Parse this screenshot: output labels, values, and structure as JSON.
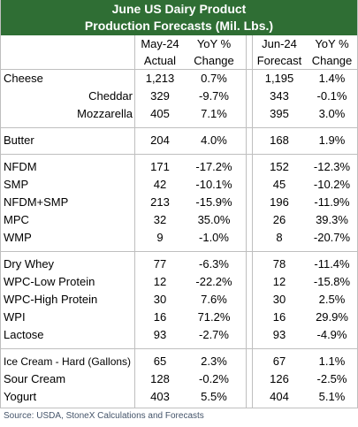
{
  "header": {
    "title": [
      "June US Dairy Product",
      "Production Forecasts (Mil. Lbs.)"
    ]
  },
  "columns": [
    [
      "May-24",
      "Actual"
    ],
    [
      "YoY %",
      "Change"
    ],
    [
      "Jun-24",
      "Forecast"
    ],
    [
      "YoY %",
      "Change"
    ]
  ],
  "groups": [
    [
      {
        "cells": [
          "Cheese",
          "1,213",
          "0.7%",
          "1,195",
          "1.4%"
        ]
      },
      {
        "cells": [
          "Cheddar",
          "329",
          "-9.7%",
          "343",
          "-0.1%"
        ],
        "indent": true
      },
      {
        "cells": [
          "Mozzarella",
          "405",
          "7.1%",
          "395",
          "3.0%"
        ],
        "indent": true
      }
    ],
    [
      {
        "cells": [
          "Butter",
          "204",
          "4.0%",
          "168",
          "1.9%"
        ]
      }
    ],
    [
      {
        "cells": [
          "NFDM",
          "171",
          "-17.2%",
          "152",
          "-12.3%"
        ]
      },
      {
        "cells": [
          "SMP",
          "42",
          "-10.1%",
          "45",
          "-10.2%"
        ]
      },
      {
        "cells": [
          "NFDM+SMP",
          "213",
          "-15.9%",
          "196",
          "-11.9%"
        ]
      },
      {
        "cells": [
          "MPC",
          "32",
          "35.0%",
          "26",
          "39.3%"
        ]
      },
      {
        "cells": [
          "WMP",
          "9",
          "-1.0%",
          "8",
          "-20.7%"
        ]
      }
    ],
    [
      {
        "cells": [
          "Dry Whey",
          "77",
          "-6.3%",
          "78",
          "-11.4%"
        ]
      },
      {
        "cells": [
          "WPC-Low Protein",
          "12",
          "-22.2%",
          "12",
          "-15.8%"
        ]
      },
      {
        "cells": [
          "WPC-High Protein",
          "30",
          "7.6%",
          "30",
          "2.5%"
        ]
      },
      {
        "cells": [
          "WPI",
          "16",
          "71.2%",
          "16",
          "29.9%"
        ]
      },
      {
        "cells": [
          "Lactose",
          "93",
          "-2.7%",
          "93",
          "-4.9%"
        ]
      }
    ],
    [
      {
        "cells": [
          "Ice Cream - Hard (Gallons)",
          "65",
          "2.3%",
          "67",
          "1.1%"
        ]
      },
      {
        "cells": [
          "Sour Cream",
          "128",
          "-0.2%",
          "126",
          "-2.5%"
        ]
      },
      {
        "cells": [
          "Yogurt",
          "403",
          "5.5%",
          "404",
          "5.1%"
        ]
      }
    ]
  ],
  "footer": "Source: USDA, StoneX Calculations and Forecasts"
}
